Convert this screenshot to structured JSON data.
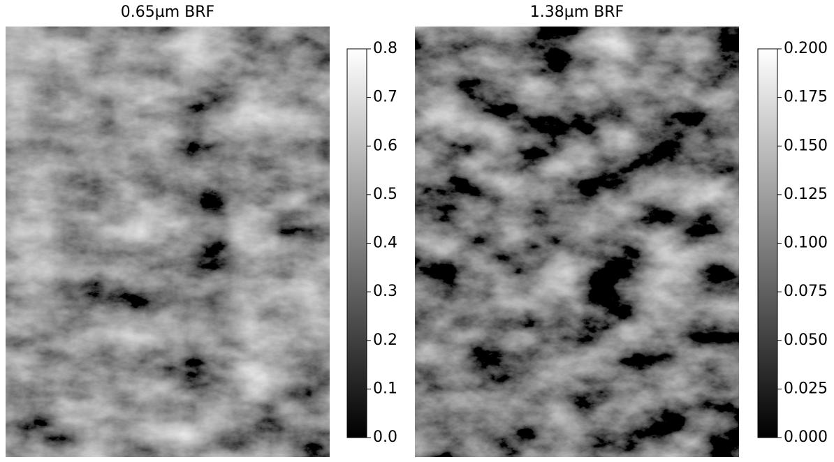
{
  "chart_data": [
    {
      "type": "image",
      "title": "0.65µm BRF",
      "colormap": "gray",
      "clim": [
        0,
        0.8
      ],
      "cticks": [
        {
          "value": 0,
          "label": "0.0"
        },
        0.1,
        0.2,
        0.3,
        0.4,
        0.5,
        0.6,
        0.7,
        0.8
      ]
    },
    {
      "type": "image",
      "title": "1.38µm BRF",
      "colormap": "gray",
      "clim": [
        0,
        0.2
      ],
      "cticks": [
        {
          "value": 0,
          "label": "0.000"
        },
        0.025,
        {
          "value": 0.05,
          "label": "0.050"
        },
        0.075,
        {
          "value": 0.1,
          "label": "0.100"
        },
        0.125,
        {
          "value": 0.15,
          "label": "0.150"
        },
        0.175,
        {
          "value": 0.2,
          "label": "0.200"
        }
      ]
    }
  ]
}
